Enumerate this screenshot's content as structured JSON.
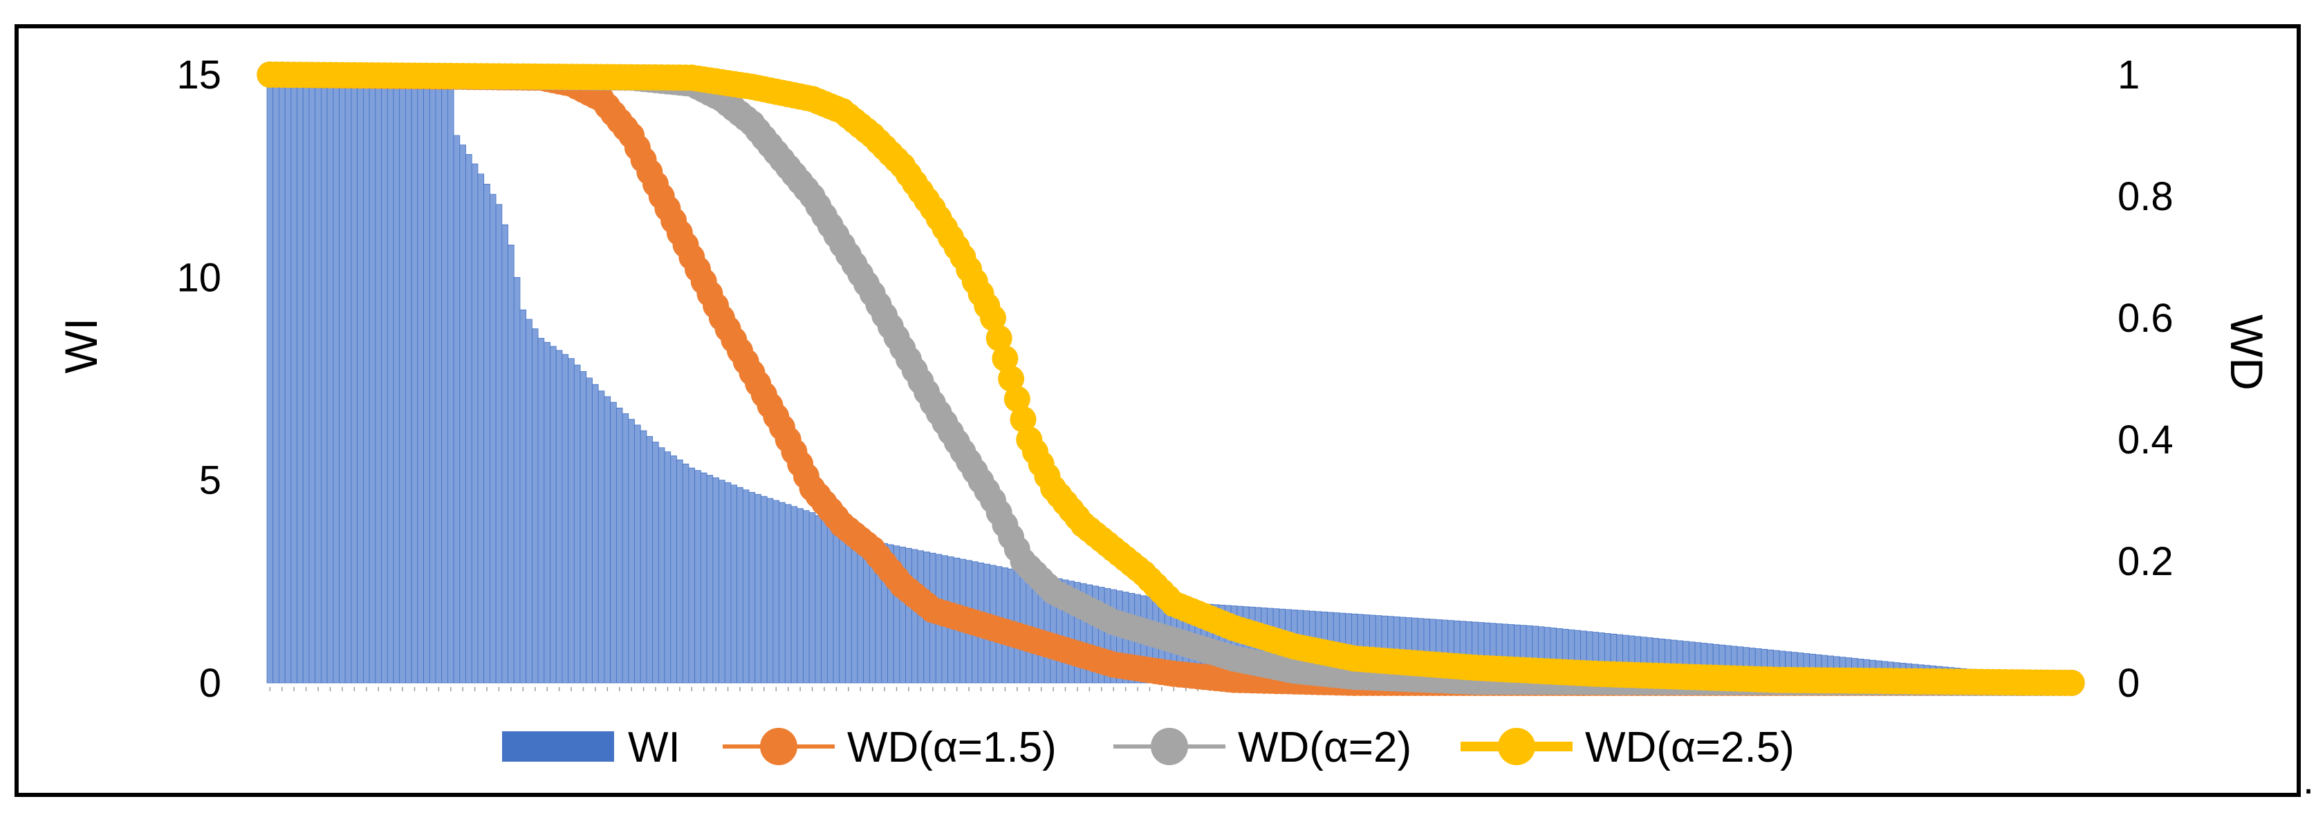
{
  "chart_data": {
    "type": "bar+line",
    "title": "",
    "n_categories": 300,
    "bar_series": {
      "name": "WI",
      "color": "#4472C4",
      "fill": "#7FA0DB",
      "axis": "left",
      "profile": [
        [
          0,
          15.0
        ],
        [
          30,
          15.0
        ],
        [
          31,
          13.5
        ],
        [
          34,
          12.8
        ],
        [
          38,
          11.8
        ],
        [
          40,
          10.8
        ],
        [
          42,
          9.2
        ],
        [
          45,
          8.5
        ],
        [
          50,
          8.0
        ],
        [
          55,
          7.2
        ],
        [
          60,
          6.5
        ],
        [
          65,
          5.8
        ],
        [
          70,
          5.3
        ],
        [
          80,
          4.7
        ],
        [
          90,
          4.2
        ],
        [
          100,
          3.5
        ],
        [
          110,
          3.2
        ],
        [
          120,
          2.9
        ],
        [
          130,
          2.6
        ],
        [
          140,
          2.3
        ],
        [
          150,
          2.0
        ],
        [
          170,
          1.8
        ],
        [
          190,
          1.6
        ],
        [
          210,
          1.4
        ],
        [
          230,
          1.1
        ],
        [
          250,
          0.8
        ],
        [
          270,
          0.5
        ],
        [
          285,
          0.3
        ],
        [
          299,
          0.2
        ]
      ]
    },
    "line_series": [
      {
        "name": "WD(α=1.5)",
        "color": "#ED7D31",
        "axis": "right",
        "stroke": "thick",
        "profile": [
          [
            0,
            1.0
          ],
          [
            45,
            0.995
          ],
          [
            50,
            0.985
          ],
          [
            55,
            0.96
          ],
          [
            60,
            0.9
          ],
          [
            65,
            0.8
          ],
          [
            70,
            0.7
          ],
          [
            75,
            0.6
          ],
          [
            80,
            0.51
          ],
          [
            85,
            0.42
          ],
          [
            90,
            0.32
          ],
          [
            95,
            0.26
          ],
          [
            100,
            0.22
          ],
          [
            105,
            0.16
          ],
          [
            110,
            0.12
          ],
          [
            120,
            0.09
          ],
          [
            130,
            0.06
          ],
          [
            140,
            0.03
          ],
          [
            150,
            0.015
          ],
          [
            160,
            0.005
          ],
          [
            180,
            0.0
          ],
          [
            299,
            0.0
          ]
        ]
      },
      {
        "name": "WD(α=2)",
        "color": "#A5A5A5",
        "axis": "right",
        "stroke": "thick",
        "profile": [
          [
            0,
            1.0
          ],
          [
            60,
            0.995
          ],
          [
            70,
            0.985
          ],
          [
            75,
            0.96
          ],
          [
            80,
            0.92
          ],
          [
            85,
            0.86
          ],
          [
            90,
            0.8
          ],
          [
            95,
            0.72
          ],
          [
            100,
            0.64
          ],
          [
            105,
            0.55
          ],
          [
            110,
            0.46
          ],
          [
            115,
            0.38
          ],
          [
            120,
            0.3
          ],
          [
            125,
            0.2
          ],
          [
            130,
            0.15
          ],
          [
            140,
            0.1
          ],
          [
            150,
            0.07
          ],
          [
            160,
            0.04
          ],
          [
            170,
            0.02
          ],
          [
            180,
            0.01
          ],
          [
            200,
            0.002
          ],
          [
            299,
            0.0
          ]
        ]
      },
      {
        "name": "WD(α=2.5)",
        "color": "#FFC000",
        "axis": "right",
        "stroke": "thick",
        "profile": [
          [
            0,
            1.0
          ],
          [
            70,
            0.995
          ],
          [
            80,
            0.98
          ],
          [
            90,
            0.96
          ],
          [
            95,
            0.94
          ],
          [
            100,
            0.9
          ],
          [
            105,
            0.85
          ],
          [
            110,
            0.78
          ],
          [
            115,
            0.7
          ],
          [
            120,
            0.6
          ],
          [
            123,
            0.5
          ],
          [
            126,
            0.4
          ],
          [
            130,
            0.32
          ],
          [
            135,
            0.26
          ],
          [
            140,
            0.22
          ],
          [
            145,
            0.18
          ],
          [
            150,
            0.13
          ],
          [
            160,
            0.09
          ],
          [
            170,
            0.06
          ],
          [
            180,
            0.04
          ],
          [
            200,
            0.025
          ],
          [
            220,
            0.015
          ],
          [
            250,
            0.005
          ],
          [
            299,
            0.0
          ]
        ]
      }
    ],
    "left_axis": {
      "label": "WI",
      "ylim": [
        0,
        15
      ],
      "ticks": [
        "0",
        "5",
        "10",
        "15"
      ]
    },
    "right_axis": {
      "label": "WD",
      "ylim": [
        0,
        1
      ],
      "ticks": [
        "0",
        "0.2",
        "0.4",
        "0.6",
        "0.8",
        "1"
      ]
    },
    "legend": {
      "position": "bottom",
      "entries": [
        "WI",
        "WD(α=1.5)",
        "WD(α=2)",
        "WD(α=2.5)"
      ]
    },
    "trailing_mark": "."
  }
}
